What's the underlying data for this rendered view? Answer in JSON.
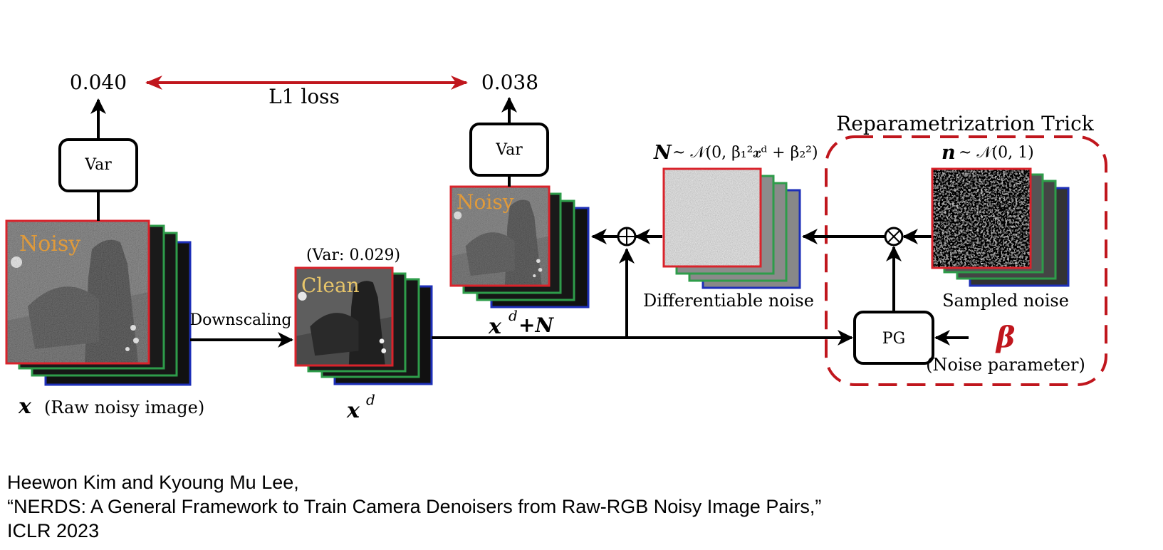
{
  "colors": {
    "accent_red": "#c0161d",
    "frame_red": "#d9232b",
    "frame_green": "#2e9c4a",
    "frame_blue": "#1d2fb8",
    "label_orange": "#e09a3a",
    "label_clean": "#e8c66a"
  },
  "diagram": {
    "loss": {
      "left_value": "0.040",
      "right_value": "0.038",
      "label": "L1 loss"
    },
    "var_box_label": "Var",
    "var_box2_label": "Var",
    "raw_stack": {
      "overlay": "Noisy",
      "caption_symbol": "𝒙",
      "caption_text": "(Raw noisy image)"
    },
    "downscaling_label": "Downscaling",
    "clean_stack": {
      "overlay": "Clean",
      "var_note": "(Var: 0.029)",
      "caption_base": "𝒙",
      "caption_sup": "d"
    },
    "noisy_out_stack": {
      "overlay": "Noisy",
      "caption_base": "𝒙",
      "caption_sup": "d",
      "caption_rest": "+𝑵"
    },
    "diff_noise": {
      "formula_lead": "𝑵",
      "formula_rest": "~ 𝒩(0, β₁²𝒙ᵈ + β₂²)",
      "caption": "Differentiable noise"
    },
    "reparam": {
      "title": "Reparametrizatrion Trick",
      "formula_lead": "𝒏",
      "formula_rest": "~ 𝒩(0, 1)",
      "sampled_caption": "Sampled noise",
      "pg_label": "PG",
      "beta_symbol": "β",
      "beta_caption": "(Noise parameter)"
    },
    "ops": {
      "add_symbol": "⊕",
      "mul_symbol": "⊗"
    }
  },
  "citation": {
    "line1": "Heewon Kim and Kyoung Mu Lee,",
    "line2": "“NERDS: A General Framework to Train Camera Denoisers from Raw-RGB Noisy Image Pairs,”",
    "line3": "ICLR 2023"
  }
}
